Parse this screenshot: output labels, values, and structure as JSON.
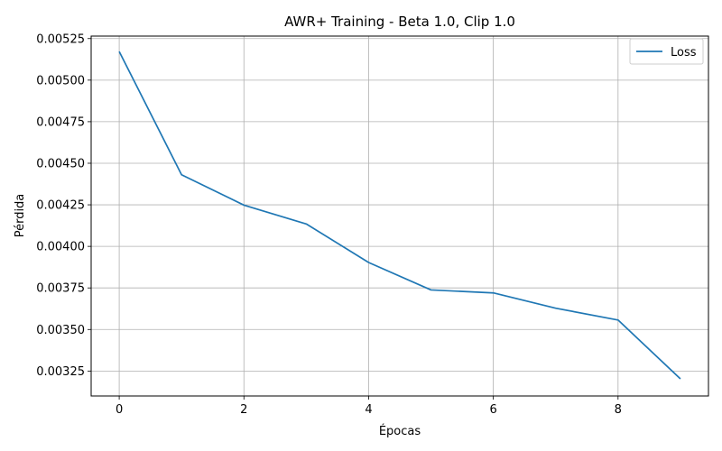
{
  "chart_data": {
    "type": "line",
    "title": "AWR+ Training - Beta 1.0, Clip 1.0",
    "xlabel": "Épocas",
    "ylabel": "Pérdida",
    "xlim": [
      -0.45,
      9.45
    ],
    "ylim": [
      0.0031,
      0.005265
    ],
    "xticks": [
      0,
      2,
      4,
      6,
      8
    ],
    "yticks": [
      0.00325,
      0.0035,
      0.00375,
      0.004,
      0.00425,
      0.0045,
      0.00475,
      0.005,
      0.00525
    ],
    "ytick_labels": [
      "0.00325",
      "0.00350",
      "0.00375",
      "0.00400",
      "0.00425",
      "0.00450",
      "0.00475",
      "0.00500",
      "0.00525"
    ],
    "xtick_labels": [
      "0",
      "2",
      "4",
      "6",
      "8"
    ],
    "grid": true,
    "legend": "top-right",
    "series": [
      {
        "name": "Loss",
        "color": "#1f77b4",
        "x": [
          0,
          1,
          2,
          3,
          4,
          5,
          6,
          7,
          8,
          9
        ],
        "y": [
          0.005172,
          0.004431,
          0.004248,
          0.004135,
          0.003903,
          0.003738,
          0.00372,
          0.003628,
          0.003557,
          0.003203
        ]
      }
    ]
  }
}
